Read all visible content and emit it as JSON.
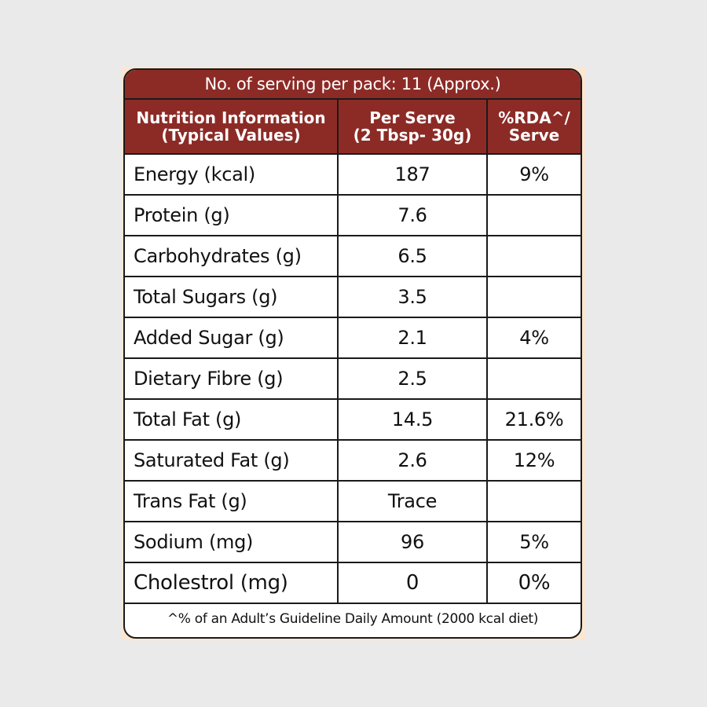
{
  "banner": {
    "servings_text": "No. of serving per pack: 11 (Approx.)"
  },
  "table": {
    "headers": {
      "col1_line1": "Nutrition Information",
      "col1_line2": "(Typical Values)",
      "col2_line1": "Per Serve",
      "col2_line2": "(2 Tbsp- 30g)",
      "col3_line1": "%RDA^/",
      "col3_line2": "Serve"
    },
    "rows": [
      {
        "nutrient": "Energy (kcal)",
        "per_serve": "187",
        "rda": "9%"
      },
      {
        "nutrient": "Protein (g)",
        "per_serve": "7.6",
        "rda": ""
      },
      {
        "nutrient": "Carbohydrates (g)",
        "per_serve": "6.5",
        "rda": ""
      },
      {
        "nutrient": "Total Sugars (g)",
        "per_serve": "3.5",
        "rda": ""
      },
      {
        "nutrient": "Added Sugar (g)",
        "per_serve": "2.1",
        "rda": "4%"
      },
      {
        "nutrient": "Dietary Fibre (g)",
        "per_serve": "2.5",
        "rda": ""
      },
      {
        "nutrient": "Total Fat (g)",
        "per_serve": "14.5",
        "rda": "21.6%"
      },
      {
        "nutrient": "Saturated Fat (g)",
        "per_serve": "2.6",
        "rda": "12%"
      },
      {
        "nutrient": "Trans Fat (g)",
        "per_serve": "Trace",
        "rda": ""
      },
      {
        "nutrient": "Sodium (mg)",
        "per_serve": "96",
        "rda": "5%"
      },
      {
        "nutrient": "Cholestrol (mg)",
        "per_serve": "0",
        "rda": "0%"
      }
    ]
  },
  "footnote": "^% of an Adult’s Guideline Daily Amount (2000 kcal diet)",
  "colors": {
    "header_bg": "#8c2b26",
    "border": "#1a1a1a",
    "page_bg": "#eaeaea"
  }
}
